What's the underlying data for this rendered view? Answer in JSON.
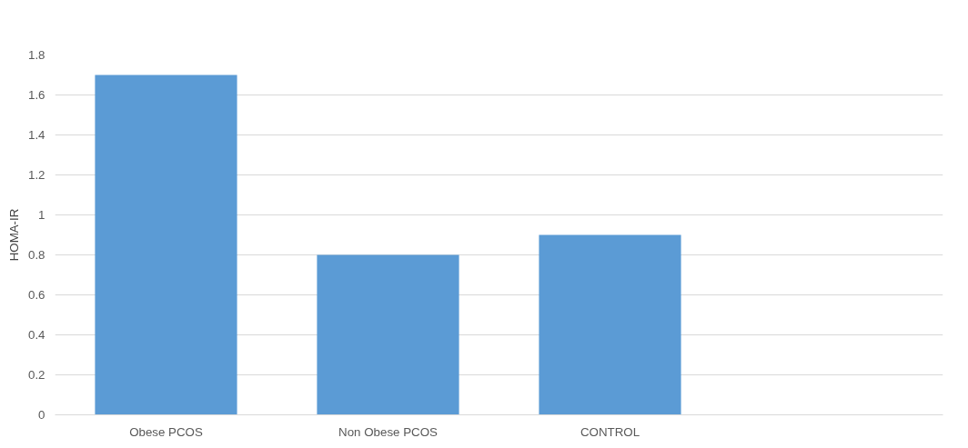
{
  "chart_data": {
    "type": "bar",
    "ylabel": "HOMA-IR",
    "categories": [
      "Obese PCOS",
      "Non Obese PCOS",
      "CONTROL",
      null
    ],
    "values": [
      1.7,
      0.8,
      0.9,
      null
    ],
    "color": "#5b9bd5",
    "ylim": [
      0,
      1.8
    ],
    "yticks": [
      0,
      {
        "value": 0.2,
        "label": "0.2"
      },
      {
        "value": 0.4,
        "label": "0.4"
      },
      {
        "value": 0.6,
        "label": "0.6"
      },
      {
        "value": 0.8,
        "label": "0.8"
      },
      1,
      {
        "value": 1.2,
        "label": "1.2"
      },
      {
        "value": 1.4,
        "label": "1.4"
      },
      {
        "value": 1.6,
        "label": "1.6"
      },
      {
        "value": 1.8,
        "label": "1.8"
      }
    ],
    "grid": "y"
  }
}
